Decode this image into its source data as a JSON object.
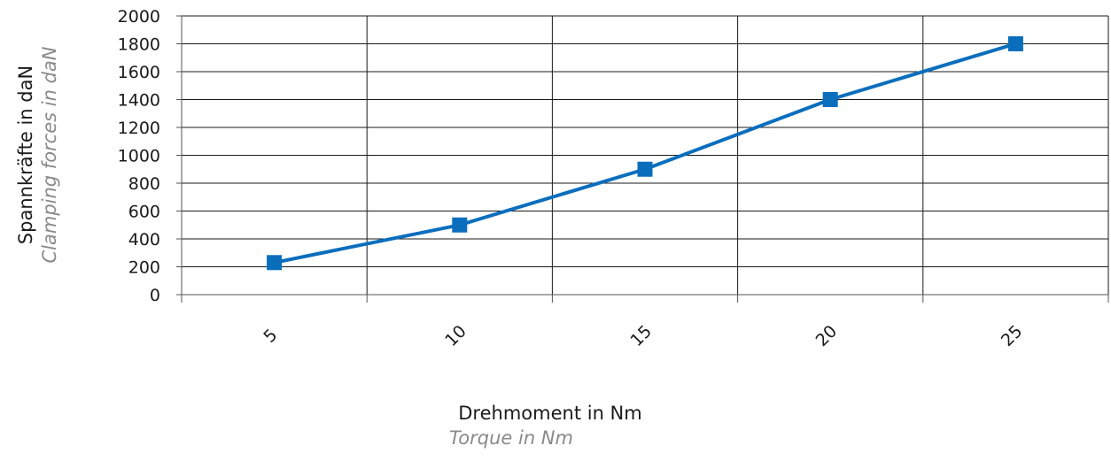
{
  "chart_data": {
    "type": "line",
    "categories": [
      "5",
      "10",
      "15",
      "20",
      "25"
    ],
    "x": [
      5,
      10,
      15,
      20,
      25
    ],
    "series": [
      {
        "values": [
          230,
          500,
          900,
          1400,
          1800
        ]
      }
    ],
    "ylim": [
      0,
      2000
    ],
    "yticks": [
      0,
      200,
      400,
      600,
      800,
      1000,
      1200,
      1400,
      1600,
      1800,
      2000
    ],
    "ylabel": "Spannkräfte in daN",
    "ylabel_secondary": "Clamping forces in daN",
    "xlabel": "Drehmoment in Nm",
    "xlabel_secondary": "Torque in Nm",
    "grid": true,
    "line_color": "#0a6ebd",
    "marker": "square"
  }
}
